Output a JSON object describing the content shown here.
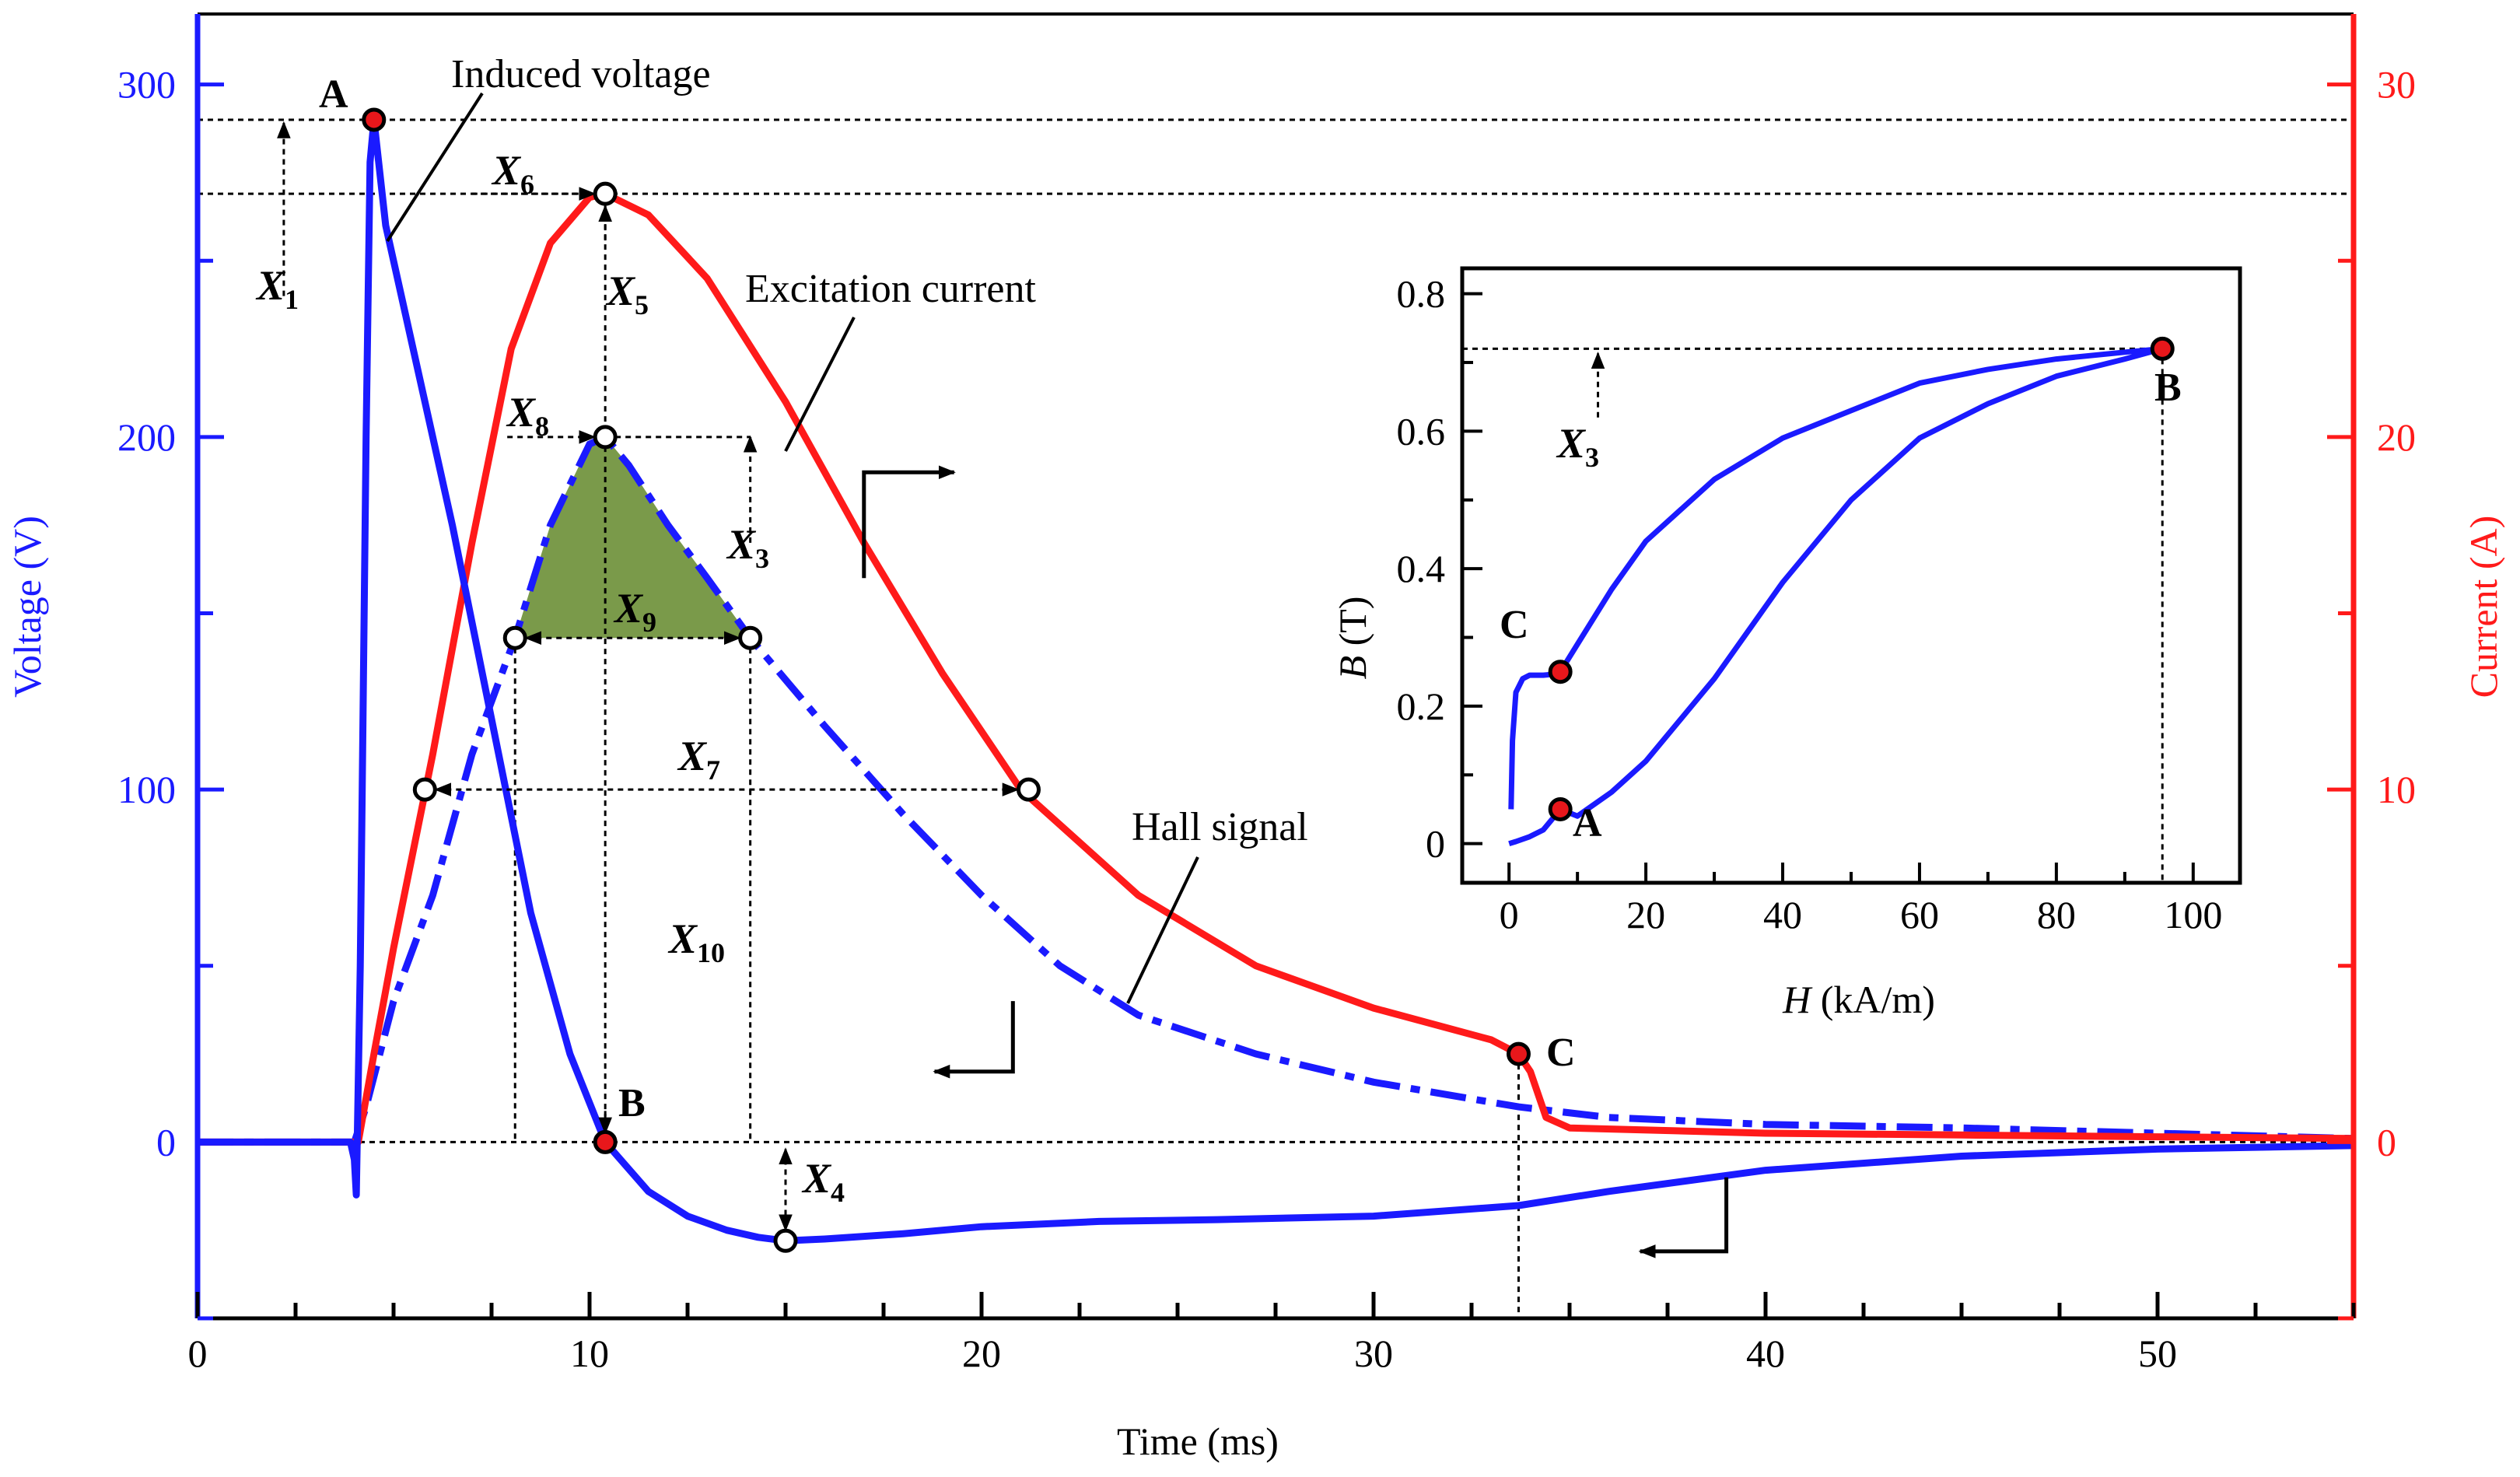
{
  "chart_data": [
    {
      "type": "line",
      "role": "main",
      "xlabel": "Time (ms)",
      "ylabel_left": "Voltage (V)",
      "ylabel_right": "Current (A)",
      "xlim": [
        0,
        55
      ],
      "ylim_left": [
        -50,
        320
      ],
      "ylim_right": [
        -5,
        32
      ],
      "x_ticks": [
        0,
        10,
        20,
        30,
        40,
        50
      ],
      "x_tick_labels": [
        "0",
        "10",
        "20",
        "30",
        "40",
        "50"
      ],
      "y_left_ticks": [
        0,
        100,
        200,
        300
      ],
      "y_left_tick_labels": [
        "0",
        "100",
        "200",
        "300"
      ],
      "y_right_ticks": [
        0,
        10,
        20,
        30
      ],
      "y_right_tick_labels": [
        "0",
        "10",
        "20",
        "30"
      ],
      "colors": {
        "voltage": "#1a1aff",
        "current": "#ff1a1a",
        "hall": "#1a1aff",
        "area": "#7a9a4a",
        "axis_left": "#1a1aff",
        "axis_right": "#ff1a1a"
      },
      "series": [
        {
          "name": "Induced voltage",
          "axis": "left",
          "style": "solid",
          "x": [
            0,
            3.9,
            4.0,
            4.05,
            4.15,
            4.3,
            4.4,
            4.5,
            4.8,
            5.5,
            6.5,
            7.5,
            8.5,
            9.5,
            10.4,
            11.5,
            12.5,
            13.5,
            14.3,
            15.0,
            16.0,
            18.0,
            20.0,
            23.0,
            26.0,
            30.0,
            33.7,
            36.0,
            40.0,
            45.0,
            50.0,
            55.0
          ],
          "y": [
            0,
            0,
            -5,
            -15,
            50,
            200,
            278,
            290,
            260,
            225,
            175,
            120,
            65,
            25,
            0,
            -14,
            -21,
            -25,
            -27,
            -28,
            -27.5,
            -26,
            -24,
            -22.5,
            -22,
            -21,
            -18,
            -14,
            -8,
            -4,
            -2,
            -1
          ]
        },
        {
          "name": "Excitation current",
          "axis": "right",
          "style": "solid",
          "x": [
            0,
            4.1,
            4.5,
            5.0,
            6.0,
            7.0,
            8.0,
            9.0,
            10.0,
            10.4,
            11.5,
            13.0,
            15.0,
            17.0,
            19.0,
            21.0,
            24.0,
            27.0,
            30.0,
            33.0,
            33.7,
            34.0,
            34.4,
            35.0,
            40.0,
            45.0,
            50.0,
            55.0
          ],
          "y": [
            0,
            0,
            2.5,
            5.5,
            11,
            17,
            22.5,
            25.5,
            26.8,
            26.9,
            26.3,
            24.5,
            21.0,
            17.0,
            13.3,
            10.0,
            7.0,
            5.0,
            3.8,
            2.9,
            2.5,
            2.0,
            0.7,
            0.4,
            0.25,
            0.2,
            0.15,
            0.1
          ]
        },
        {
          "name": "Hall signal",
          "axis": "left",
          "style": "dashdot",
          "x": [
            0,
            4.0,
            4.3,
            5.0,
            6.0,
            7.0,
            8.1,
            9.0,
            10.0,
            10.4,
            11.0,
            12.0,
            13.0,
            14.1,
            16.0,
            18.0,
            20.0,
            22.0,
            24.0,
            27.0,
            30.0,
            33.7,
            36.0,
            40.0,
            45.0,
            50.0,
            55.0
          ],
          "y": [
            0,
            0,
            10,
            40,
            70,
            110,
            143,
            175,
            198,
            200,
            192,
            175,
            160,
            143,
            118,
            93,
            70,
            50,
            36,
            25,
            17,
            10,
            7,
            5,
            4,
            2.5,
            1
          ]
        }
      ],
      "points": [
        {
          "label": "A",
          "x": 4.5,
          "y_left": 290,
          "marker": "filled"
        },
        {
          "label": "B",
          "x": 10.4,
          "y_left": 0,
          "marker": "filled"
        },
        {
          "label": "C",
          "x": 33.7,
          "y_right": 2.5,
          "marker": "filled"
        },
        {
          "label": "",
          "x": 10.4,
          "y_right": 26.9,
          "marker": "open"
        },
        {
          "label": "",
          "x": 10.4,
          "y_left": 200,
          "marker": "open"
        },
        {
          "label": "",
          "x": 8.1,
          "y_left": 143,
          "marker": "open"
        },
        {
          "label": "",
          "x": 14.1,
          "y_left": 143,
          "marker": "open"
        },
        {
          "label": "",
          "x": 5.8,
          "y_left": 100,
          "marker": "open"
        },
        {
          "label": "",
          "x": 21.2,
          "y_left": 100,
          "marker": "open"
        },
        {
          "label": "",
          "x": 15.0,
          "y_left": -28,
          "marker": "open"
        }
      ],
      "annotations": {
        "induced": "Induced voltage",
        "excitation": "Excitation current",
        "hall": "Hall signal",
        "A": "A",
        "B": "B",
        "C": "C",
        "X1": "X",
        "X1_sub": "1",
        "X3": "X",
        "X3_sub": "3",
        "X4": "X",
        "X4_sub": "4",
        "X5": "X",
        "X5_sub": "5",
        "X6": "X",
        "X6_sub": "6",
        "X7": "X",
        "X7_sub": "7",
        "X8": "X",
        "X8_sub": "8",
        "X9": "X",
        "X9_sub": "9",
        "X10": "X",
        "X10_sub": "10"
      }
    },
    {
      "type": "line",
      "role": "inset",
      "xlabel_italic": "H",
      "xlabel_rest": " (kA/m)",
      "ylabel_italic": "B",
      "ylabel_rest": " (T)",
      "xlim": [
        -4,
        104
      ],
      "ylim": [
        -0.04,
        0.82
      ],
      "x_ticks": [
        0,
        20,
        40,
        60,
        80,
        100
      ],
      "x_tick_labels": [
        "0",
        "20",
        "40",
        "60",
        "80",
        "100"
      ],
      "y_ticks": [
        0,
        0.2,
        0.4,
        0.6,
        0.8
      ],
      "y_tick_labels": [
        "0",
        "0.2",
        "0.4",
        "0.6",
        "0.8"
      ],
      "series": [
        {
          "name": "B-H loop",
          "x": [
            0.3,
            0.5,
            1.0,
            2.0,
            3.0,
            4.0,
            5.0,
            6.0,
            7.5,
            10.0,
            15.0,
            20.0,
            30.0,
            40.0,
            50.0,
            60.0,
            70.0,
            80.0,
            90.0,
            95.5,
            90.0,
            80.0,
            70.0,
            60.0,
            50.0,
            40.0,
            35.0,
            30.0,
            25.0,
            20.0,
            15.0,
            10.0,
            7.5,
            5.0,
            3.0,
            1.0,
            0.0
          ],
          "y": [
            0.05,
            0.15,
            0.22,
            0.24,
            0.245,
            0.245,
            0.245,
            0.246,
            0.25,
            0.29,
            0.37,
            0.44,
            0.53,
            0.59,
            0.63,
            0.67,
            0.69,
            0.705,
            0.715,
            0.72,
            0.705,
            0.68,
            0.64,
            0.59,
            0.5,
            0.38,
            0.31,
            0.24,
            0.18,
            0.12,
            0.075,
            0.04,
            0.05,
            0.02,
            0.01,
            0.003,
            0.0
          ]
        }
      ],
      "points": [
        {
          "label": "A",
          "x": 7.5,
          "y": 0.05
        },
        {
          "label": "B",
          "x": 95.5,
          "y": 0.72
        },
        {
          "label": "C",
          "x": 7.5,
          "y": 0.25
        }
      ],
      "annotations": {
        "A": "A",
        "B": "B",
        "C": "C",
        "X3": "X",
        "X3_sub": "3"
      }
    }
  ]
}
